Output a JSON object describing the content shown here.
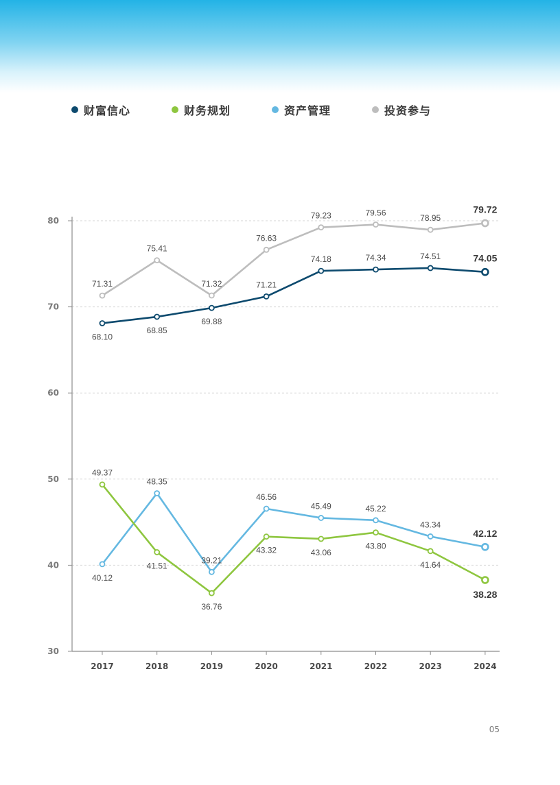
{
  "page": {
    "page_number": "05"
  },
  "colors": {
    "财富信心": "#0d4a6e",
    "财务规划": "#8ec63f",
    "资产管理": "#64b8e1",
    "投资参与": "#bdbdbd",
    "axis": "#8c8c8c",
    "grid": "#d6d6d6",
    "label": "#4d4d4d",
    "tick": "#7a7a7a"
  },
  "legend": [
    {
      "name": "财富信心",
      "color": "#0d4a6e"
    },
    {
      "name": "财务规划",
      "color": "#8ec63f"
    },
    {
      "name": "资产管理",
      "color": "#64b8e1"
    },
    {
      "name": "投资参与",
      "color": "#bdbdbd"
    }
  ],
  "chart_data": {
    "type": "line",
    "title": "",
    "xlabel": "",
    "ylabel": "",
    "x": [
      "2017",
      "2018",
      "2019",
      "2020",
      "2021",
      "2022",
      "2023",
      "2024"
    ],
    "ylim": [
      30,
      80
    ],
    "yticks": [
      "30",
      "40",
      "50",
      "60",
      "70",
      "80"
    ],
    "grid": true,
    "legend_position": "top",
    "series": [
      {
        "name": "财富信心",
        "color": "#0d4a6e",
        "values": [
          68.1,
          68.85,
          69.88,
          71.21,
          74.18,
          74.34,
          74.51,
          74.05
        ],
        "labels": [
          "68.10",
          "68.85",
          "69.88",
          "71.21",
          "74.18",
          "74.34",
          "74.51",
          "74.05"
        ],
        "label_side": [
          "below",
          "below",
          "below",
          "above",
          "above",
          "above",
          "above",
          "above"
        ]
      },
      {
        "name": "财务规划",
        "color": "#8ec63f",
        "values": [
          49.37,
          41.51,
          36.76,
          43.32,
          43.06,
          43.8,
          41.64,
          38.28
        ],
        "labels": [
          "49.37",
          "41.51",
          "36.76",
          "43.32",
          "43.06",
          "43.80",
          "41.64",
          "38.28"
        ],
        "label_side": [
          "above",
          "below",
          "below",
          "below",
          "below",
          "below",
          "below",
          "below"
        ]
      },
      {
        "name": "资产管理",
        "color": "#64b8e1",
        "values": [
          40.12,
          48.35,
          39.21,
          46.56,
          45.49,
          45.22,
          43.34,
          42.12
        ],
        "labels": [
          "40.12",
          "48.35",
          "39.21",
          "46.56",
          "45.49",
          "45.22",
          "43.34",
          "42.12"
        ],
        "label_side": [
          "below",
          "above",
          "above",
          "above",
          "above",
          "above",
          "above",
          "above"
        ]
      },
      {
        "name": "投资参与",
        "color": "#bdbdbd",
        "values": [
          71.31,
          75.41,
          71.32,
          76.63,
          79.23,
          79.56,
          78.95,
          79.72
        ],
        "labels": [
          "71.31",
          "75.41",
          "71.32",
          "76.63",
          "79.23",
          "79.56",
          "78.95",
          "79.72"
        ],
        "label_side": [
          "above",
          "above",
          "above",
          "above",
          "above",
          "above",
          "above",
          "above"
        ]
      }
    ]
  }
}
